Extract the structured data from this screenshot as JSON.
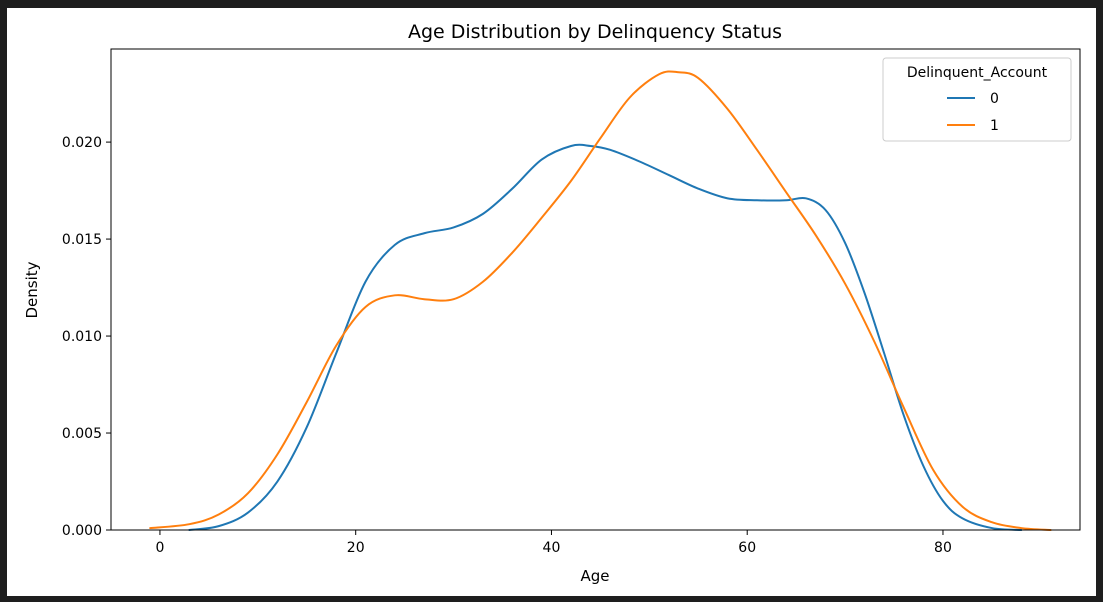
{
  "chart_data": {
    "type": "line",
    "title": "Age Distribution by Delinquency Status",
    "xlabel": "Age",
    "ylabel": "Density",
    "xlim": [
      -5,
      94
    ],
    "ylim": [
      0,
      0.0248
    ],
    "xticks": [
      0,
      20,
      40,
      60,
      80
    ],
    "xtick_labels": [
      "0",
      "20",
      "40",
      "60",
      "80"
    ],
    "yticks": [
      0.0,
      0.005,
      0.01,
      0.015,
      0.02
    ],
    "ytick_labels": [
      "0.000",
      "0.005",
      "0.010",
      "0.015",
      "0.020"
    ],
    "grid": false,
    "legend": {
      "title": "Delinquent_Account",
      "placement": "top-right"
    },
    "series": [
      {
        "name": "0",
        "color": "#1f77b4",
        "x": [
          3,
          6,
          9,
          12,
          15,
          18,
          21,
          24,
          27,
          30,
          33,
          36,
          39,
          42,
          44,
          46,
          49,
          52,
          55,
          58,
          61,
          64,
          66,
          68,
          70,
          72,
          74,
          76,
          78,
          80,
          82,
          85,
          88
        ],
        "y": [
          0.0,
          0.0002,
          0.0009,
          0.0025,
          0.0053,
          0.0091,
          0.0128,
          0.0147,
          0.0153,
          0.0156,
          0.0163,
          0.0176,
          0.0191,
          0.0198,
          0.0198,
          0.0196,
          0.019,
          0.0183,
          0.0176,
          0.0171,
          0.017,
          0.017,
          0.0171,
          0.0165,
          0.0148,
          0.0122,
          0.0091,
          0.0059,
          0.0033,
          0.0015,
          0.0006,
          0.0001,
          0.0
        ]
      },
      {
        "name": "1",
        "color": "#ff7f0e",
        "x": [
          -1,
          3,
          6,
          9,
          12,
          15,
          18,
          21,
          24,
          27,
          30,
          33,
          36,
          39,
          42,
          45,
          48,
          51,
          53,
          55,
          58,
          61,
          64,
          67,
          70,
          73,
          76,
          79,
          82,
          85,
          88,
          91
        ],
        "y": [
          0.0001,
          0.0003,
          0.0008,
          0.0019,
          0.0039,
          0.0066,
          0.0095,
          0.0115,
          0.0121,
          0.0119,
          0.0119,
          0.0128,
          0.0143,
          0.0161,
          0.018,
          0.0202,
          0.0223,
          0.0235,
          0.0236,
          0.0233,
          0.0217,
          0.0196,
          0.0174,
          0.0152,
          0.0127,
          0.0097,
          0.0063,
          0.0031,
          0.0012,
          0.0004,
          0.0001,
          0.0
        ]
      }
    ]
  }
}
